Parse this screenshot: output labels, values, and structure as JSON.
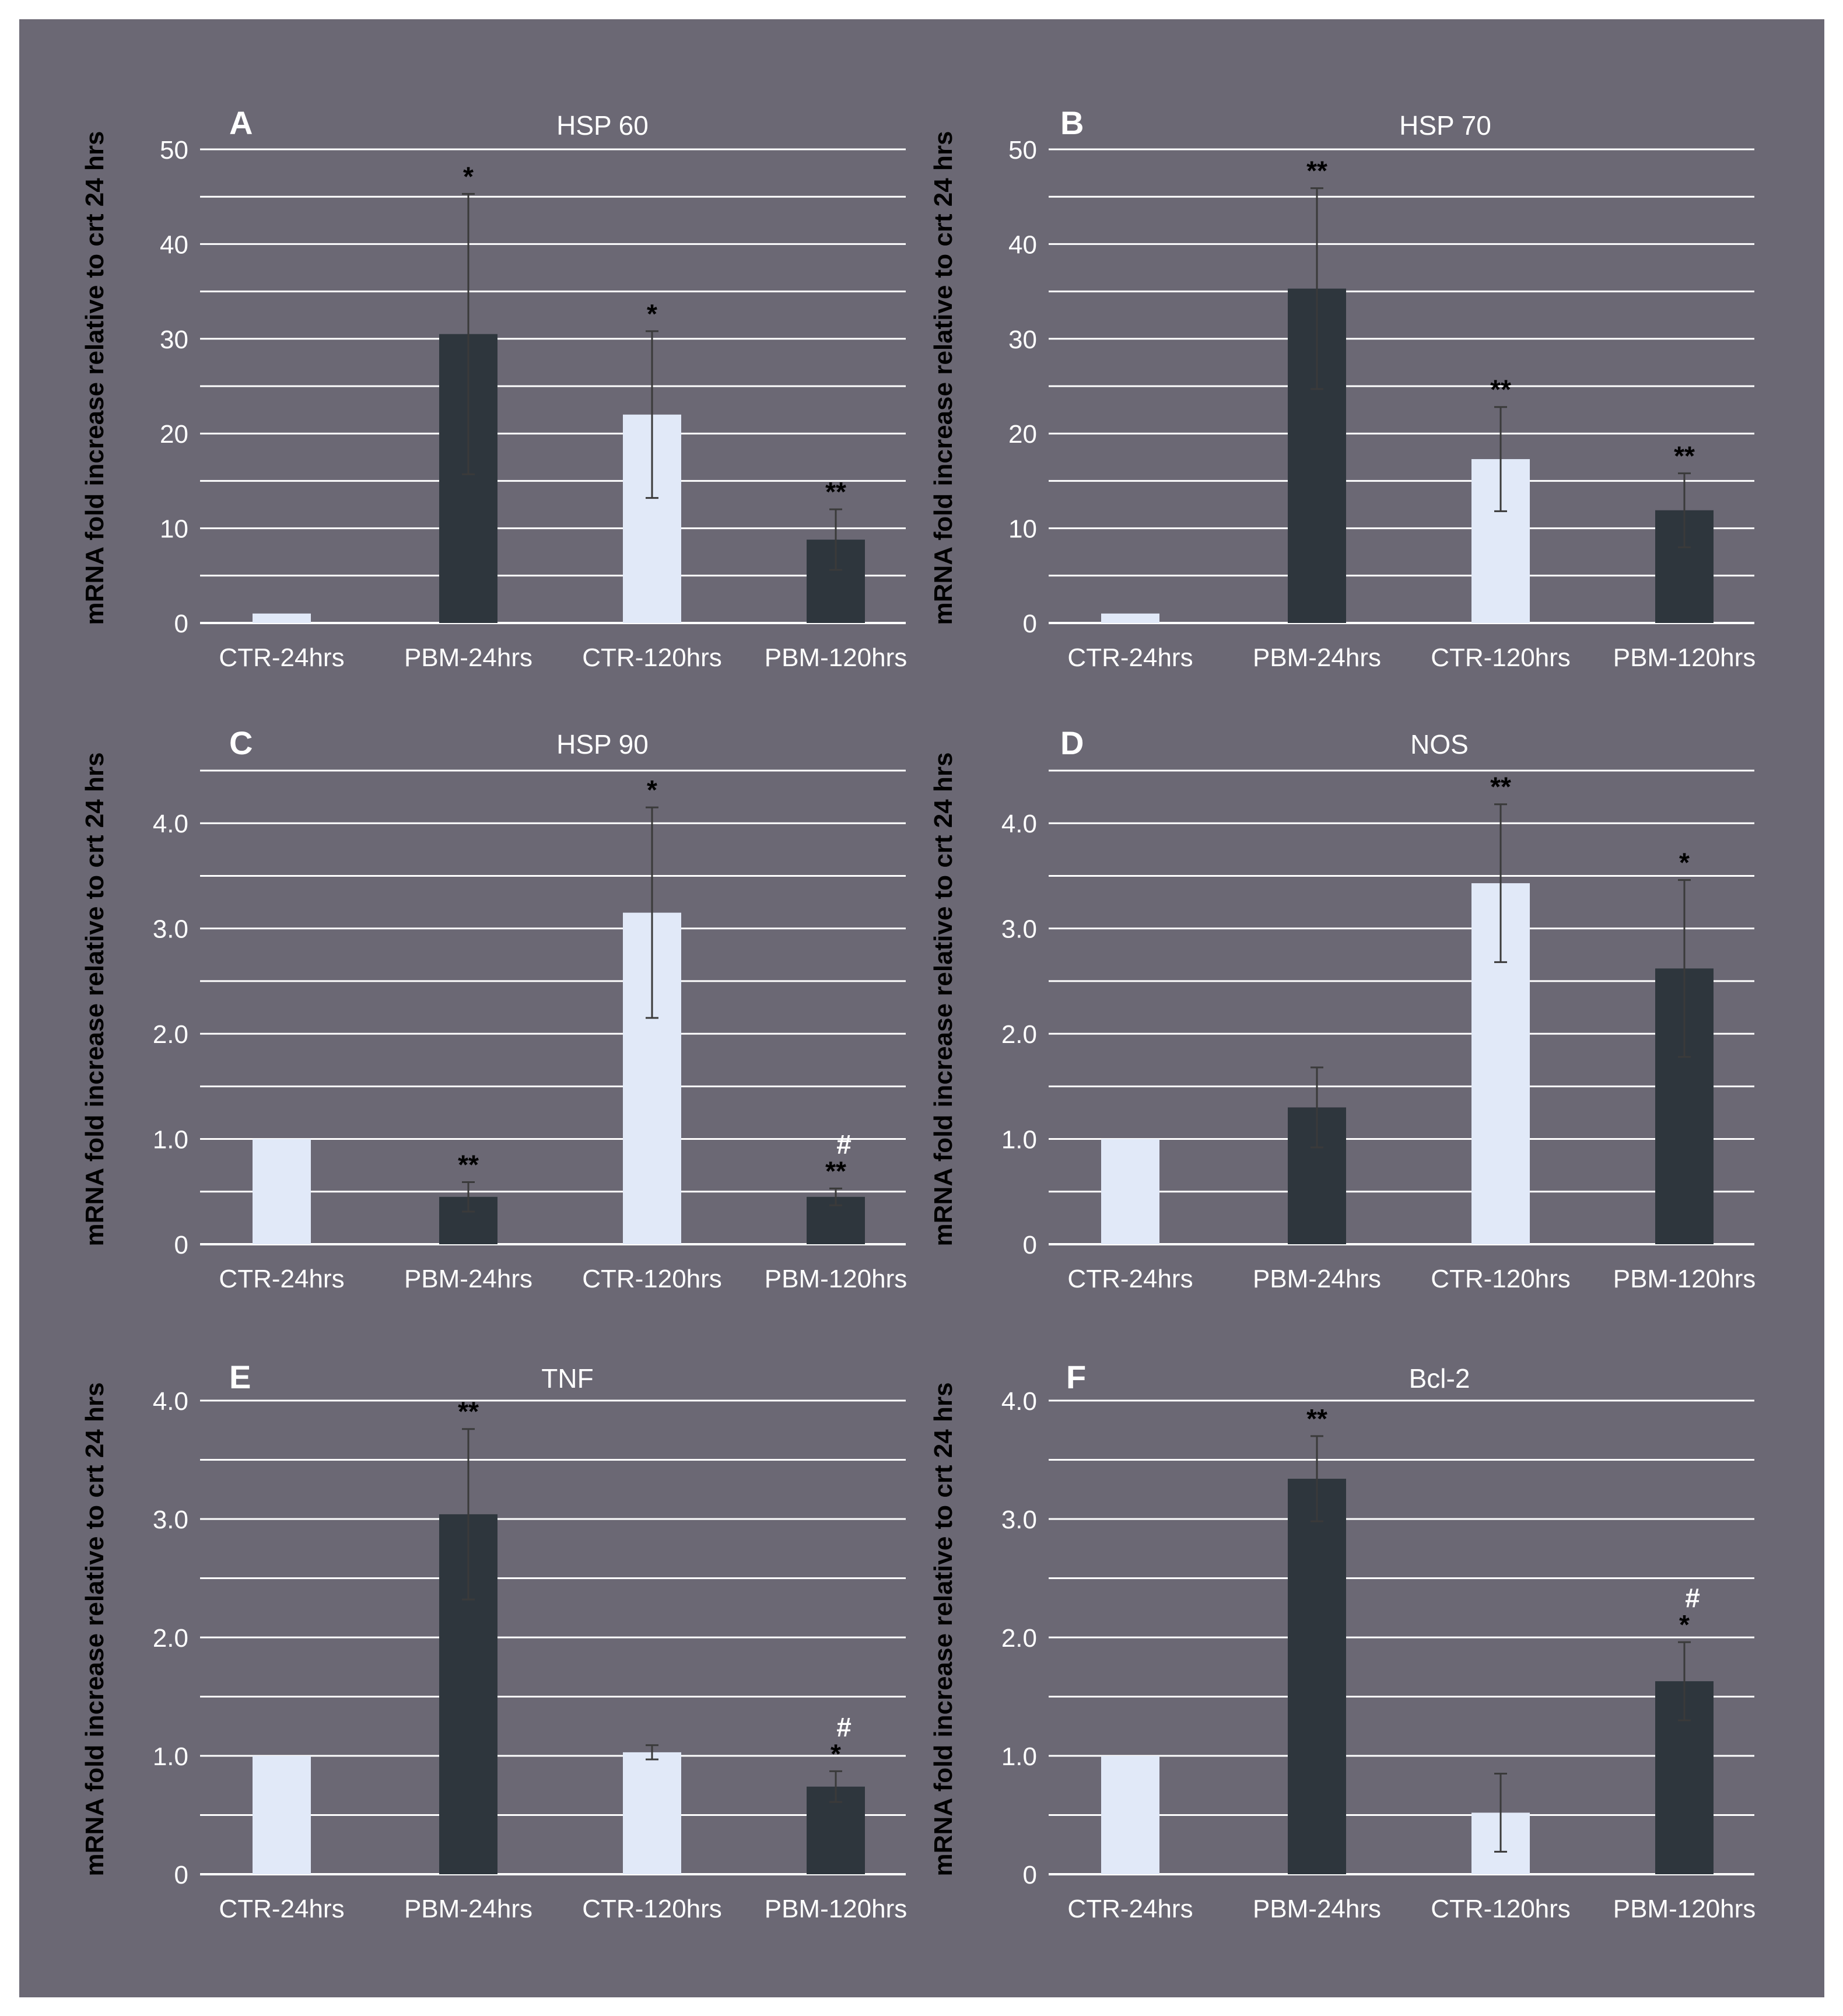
{
  "colors": {
    "background": "#6b6874",
    "ctr_bar": "#e1e9f8",
    "pbm_bar": "#2e363d",
    "gridline": "#ffffff",
    "errorbar": "#3a3a3a",
    "tick_text": "#ffffff",
    "ylabel_text": "#000000",
    "significance_text": "#000000"
  },
  "chart_data": [
    {
      "type": "bar",
      "panel": "A",
      "title": "HSP 60",
      "ylabel": "mRNA fold increase relative to crt 24 hrs",
      "xlabel": "",
      "categories": [
        "CTR-24hrs",
        "PBM-24hrs",
        "CTR-120hrs",
        "PBM-120hrs"
      ],
      "series": [
        {
          "name": "mRNA fold increase",
          "values": [
            1.0,
            30.5,
            22.0,
            8.8
          ],
          "errors": [
            0.0,
            14.8,
            8.8,
            3.2
          ]
        }
      ],
      "bar_groups": [
        "CTR",
        "PBM",
        "CTR",
        "PBM"
      ],
      "significance": [
        "",
        "*",
        "*",
        "**"
      ],
      "significance2": [
        "",
        "",
        "",
        ""
      ],
      "ylim": [
        0,
        50
      ],
      "grid_max": 50,
      "grid_step": 5,
      "yticks": [
        0,
        10,
        20,
        30,
        40,
        50
      ],
      "ytick_labels": [
        "0",
        "10",
        "20",
        "30",
        "40",
        "50"
      ],
      "grid": true
    },
    {
      "type": "bar",
      "panel": "B",
      "title": "HSP 70",
      "ylabel": "mRNA fold increase relative to crt 24 hrs",
      "xlabel": "",
      "categories": [
        "CTR-24hrs",
        "PBM-24hrs",
        "CTR-120hrs",
        "PBM-120hrs"
      ],
      "series": [
        {
          "name": "mRNA fold increase",
          "values": [
            1.0,
            35.3,
            17.3,
            11.9
          ],
          "errors": [
            0.0,
            10.6,
            5.5,
            3.9
          ]
        }
      ],
      "bar_groups": [
        "CTR",
        "PBM",
        "CTR",
        "PBM"
      ],
      "significance": [
        "",
        "**",
        "**",
        "**"
      ],
      "significance2": [
        "",
        "",
        "",
        ""
      ],
      "ylim": [
        0,
        50
      ],
      "grid_max": 50,
      "grid_step": 5,
      "yticks": [
        0,
        10,
        20,
        30,
        40,
        50
      ],
      "ytick_labels": [
        "0",
        "10",
        "20",
        "30",
        "40",
        "50"
      ],
      "grid": true
    },
    {
      "type": "bar",
      "panel": "C",
      "title": "HSP 90",
      "ylabel": "mRNA fold increase relative to crt 24 hrs",
      "xlabel": "",
      "categories": [
        "CTR-24hrs",
        "PBM-24hrs",
        "CTR-120hrs",
        "PBM-120hrs"
      ],
      "series": [
        {
          "name": "mRNA fold increase",
          "values": [
            1.0,
            0.45,
            3.15,
            0.45
          ],
          "errors": [
            0.0,
            0.14,
            1.0,
            0.08
          ]
        }
      ],
      "bar_groups": [
        "CTR",
        "PBM",
        "CTR",
        "PBM"
      ],
      "significance": [
        "",
        "**",
        "*",
        "**"
      ],
      "significance2": [
        "",
        "",
        "",
        "#"
      ],
      "ylim": [
        0,
        4.5
      ],
      "grid_max": 4.5,
      "grid_step": 0.5,
      "yticks": [
        0,
        1,
        2,
        3,
        4
      ],
      "ytick_labels": [
        "0",
        "1.0",
        "2.0",
        "3.0",
        "4.0"
      ],
      "grid": true
    },
    {
      "type": "bar",
      "panel": "D",
      "title": "NOS",
      "ylabel": "mRNA fold increase relative to crt 24 hrs",
      "xlabel": "",
      "categories": [
        "CTR-24hrs",
        "PBM-24hrs",
        "CTR-120hrs",
        "PBM-120hrs"
      ],
      "series": [
        {
          "name": "mRNA fold increase",
          "values": [
            1.0,
            1.3,
            3.43,
            2.62
          ],
          "errors": [
            0.0,
            0.38,
            0.75,
            0.84
          ]
        }
      ],
      "bar_groups": [
        "CTR",
        "PBM",
        "CTR",
        "PBM"
      ],
      "significance": [
        "",
        "",
        "**",
        "*"
      ],
      "significance2": [
        "",
        "",
        "",
        ""
      ],
      "ylim": [
        0,
        4.5
      ],
      "grid_max": 4.5,
      "grid_step": 0.5,
      "yticks": [
        0,
        1,
        2,
        3,
        4
      ],
      "ytick_labels": [
        "0",
        "1.0",
        "2.0",
        "3.0",
        "4.0"
      ],
      "grid": true
    },
    {
      "type": "bar",
      "panel": "E",
      "title": "TNF",
      "ylabel": "mRNA fold increase relative to crt 24 hrs",
      "xlabel": "",
      "categories": [
        "CTR-24hrs",
        "PBM-24hrs",
        "CTR-120hrs",
        "PBM-120hrs"
      ],
      "series": [
        {
          "name": "mRNA fold increase",
          "values": [
            1.0,
            3.04,
            1.03,
            0.74
          ],
          "errors": [
            0.0,
            0.72,
            0.06,
            0.13
          ]
        }
      ],
      "bar_groups": [
        "CTR",
        "PBM",
        "CTR",
        "PBM"
      ],
      "significance": [
        "",
        "**",
        "",
        "*"
      ],
      "significance2": [
        "",
        "",
        "",
        "#"
      ],
      "ylim": [
        0,
        4
      ],
      "grid_max": 4,
      "grid_step": 0.5,
      "yticks": [
        0,
        1,
        2,
        3,
        4
      ],
      "ytick_labels": [
        "0",
        "1.0",
        "2.0",
        "3.0",
        "4.0"
      ],
      "grid": true
    },
    {
      "type": "bar",
      "panel": "F",
      "title": "Bcl-2",
      "ylabel": "mRNA fold increase relative to crt 24 hrs",
      "xlabel": "",
      "categories": [
        "CTR-24hrs",
        "PBM-24hrs",
        "CTR-120hrs",
        "PBM-120hrs"
      ],
      "series": [
        {
          "name": "mRNA fold increase",
          "values": [
            1.0,
            3.34,
            0.52,
            1.63
          ],
          "errors": [
            0.0,
            0.36,
            0.33,
            0.33
          ]
        }
      ],
      "bar_groups": [
        "CTR",
        "PBM",
        "CTR",
        "PBM"
      ],
      "significance": [
        "",
        "**",
        "",
        "*"
      ],
      "significance2": [
        "",
        "",
        "",
        "#"
      ],
      "ylim": [
        0,
        4
      ],
      "grid_max": 4,
      "grid_step": 0.5,
      "yticks": [
        0,
        1,
        2,
        3,
        4
      ],
      "ytick_labels": [
        "0",
        "1.0",
        "2.0",
        "3.0",
        "4.0"
      ],
      "grid": true
    }
  ]
}
